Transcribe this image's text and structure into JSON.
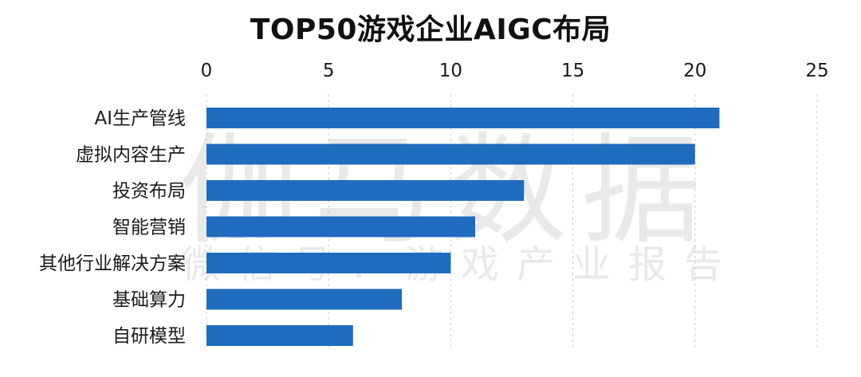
{
  "watermark": {
    "main": "伽马数据",
    "sub": "微信号：游戏产业报告"
  },
  "chart_data": {
    "type": "bar",
    "orientation": "horizontal",
    "title": "TOP50游戏企业AIGC布局",
    "categories": [
      "AI生产管线",
      "虚拟内容生产",
      "投资布局",
      "智能营销",
      "其他行业解决方案",
      "基础算力",
      "自研模型"
    ],
    "values": [
      21,
      20,
      13,
      11,
      10,
      8,
      6
    ],
    "xlim": [
      0,
      25
    ],
    "x_ticks": [
      0,
      5,
      10,
      15,
      20,
      25
    ],
    "x_axis_position": "top",
    "grid": true,
    "bar_color": "#1f6cbf"
  }
}
